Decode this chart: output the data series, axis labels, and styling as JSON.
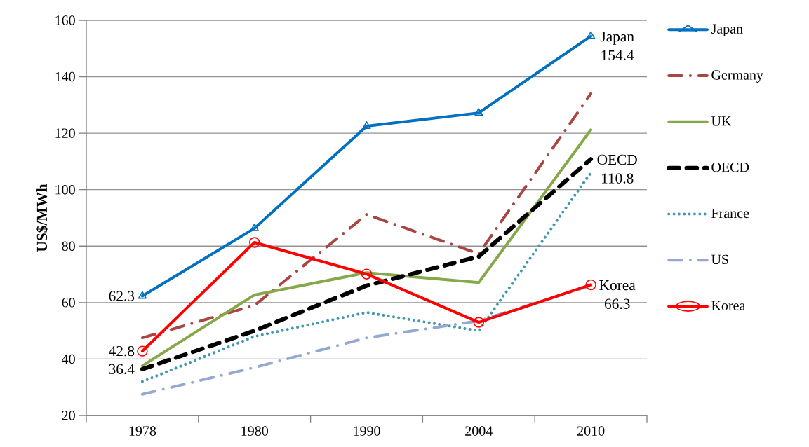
{
  "chart_data": {
    "type": "line",
    "ylabel": "US$/MWh",
    "categories": [
      "1978",
      "1980",
      "1990",
      "2004",
      "2010"
    ],
    "series": [
      {
        "name": "Japan",
        "color": "#0070c0",
        "marker": "triangle",
        "line_style": "solid",
        "values": [
          62.3,
          86.3,
          122.5,
          127.2,
          154.4
        ]
      },
      {
        "name": "Germany",
        "color": "#a94643",
        "marker": "none",
        "line_style": "dashdot",
        "values": [
          47.5,
          59,
          91.2,
          77.3,
          134
        ]
      },
      {
        "name": "UK",
        "color": "#86a84a",
        "marker": "none",
        "line_style": "solid",
        "values": [
          37.6,
          62.7,
          70.6,
          67.1,
          121.2
        ]
      },
      {
        "name": "OECD",
        "color": "#000000",
        "marker": "none",
        "line_style": "dashed",
        "values": [
          36.4,
          50,
          66,
          76.3,
          110.8
        ]
      },
      {
        "name": "France",
        "color": "#4198af",
        "marker": "none",
        "line_style": "dotted",
        "values": [
          32,
          48,
          56.5,
          50,
          106
        ]
      },
      {
        "name": "US",
        "color": "#94a8d0",
        "marker": "none",
        "line_style": "dashdot",
        "values": [
          27.5,
          37,
          47.5,
          53.5,
          66
        ]
      },
      {
        "name": "Korea",
        "color": "#ff0000",
        "marker": "circle",
        "line_style": "solid",
        "values": [
          42.8,
          81.3,
          70.1,
          53,
          66.3
        ]
      }
    ],
    "ylim": [
      20,
      160
    ],
    "yticks": [
      20,
      40,
      60,
      80,
      100,
      120,
      140,
      160
    ],
    "grid": "y",
    "legend": "right",
    "annotations": [
      {
        "text": "62.3",
        "x": "1978",
        "y": 62.3
      },
      {
        "text": "42.8",
        "x": "1978",
        "y": 42.8
      },
      {
        "text": "36.4",
        "x": "1978",
        "y": 36.4
      },
      {
        "text": "Japan 154.4",
        "x": "2010",
        "y": 154.4
      },
      {
        "text": "OECD 110.8",
        "x": "2010",
        "y": 110.8
      },
      {
        "text": "Korea 66.3",
        "x": "2010",
        "y": 66.3
      }
    ]
  }
}
